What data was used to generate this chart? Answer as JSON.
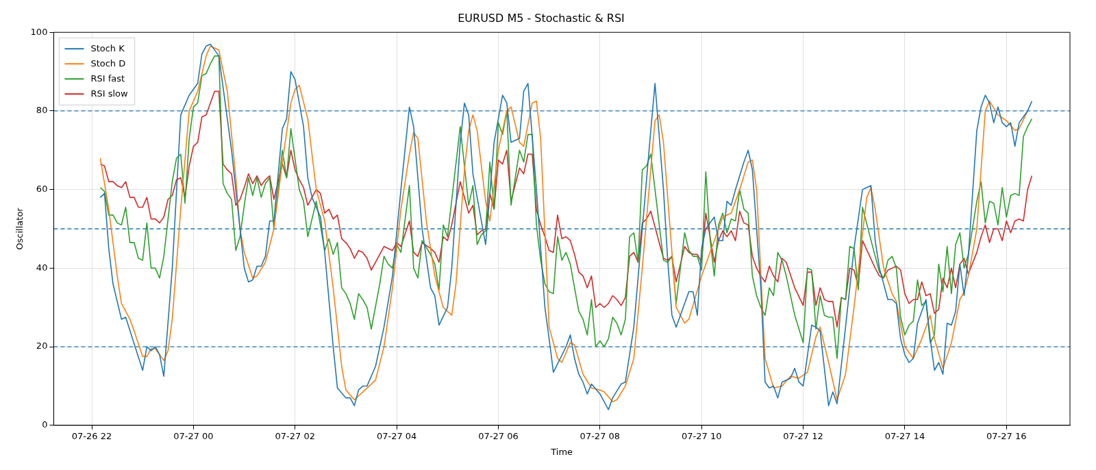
{
  "chart_data": {
    "type": "line",
    "title": "EURUSD M5 - Stochastic & RSI",
    "xlabel": "Time",
    "ylabel": "Oscillator",
    "xlim": [
      "--07-26T21:15",
      "--07-27T17:15"
    ],
    "xticks": [
      {
        "value": "--07-26T22:00",
        "label": "07-26 22"
      },
      {
        "value": "--07-27T00:00",
        "label": "07-27 00"
      },
      {
        "value": "--07-27T02:00",
        "label": "07-27 02"
      },
      {
        "value": "--07-27T04:00",
        "label": "07-27 04"
      },
      {
        "value": "--07-27T06:00",
        "label": "07-27 06"
      },
      {
        "value": "--07-27T08:00",
        "label": "07-27 08"
      },
      {
        "value": "--07-27T10:00",
        "label": "07-27 10"
      },
      {
        "value": "--07-27T12:00",
        "label": "07-27 12"
      },
      {
        "value": "--07-27T14:00",
        "label": "07-27 14"
      },
      {
        "value": "--07-27T16:00",
        "label": "07-27 16"
      }
    ],
    "ylim": [
      0,
      100
    ],
    "yticks": [
      0,
      20,
      40,
      60,
      80,
      100
    ],
    "grid": true,
    "legend": "top left",
    "ref_lines": [
      {
        "axis": "y",
        "value": 80,
        "color": "#1f77b4",
        "line_style": "dashed"
      },
      {
        "axis": "y",
        "value": 50,
        "color": "#1f78b4",
        "line_style": "dashed"
      },
      {
        "axis": "y",
        "value": 20,
        "color": "#1f76b4",
        "line_style": "dashed"
      }
    ],
    "series": [
      {
        "name": "Stoch K",
        "color": "#1f77b4",
        "x": [
          "--07-26T22:10",
          "--07-26T22:15",
          "--07-26T22:20",
          "--07-26T22:25",
          "--07-26T22:35",
          "--07-26T22:40",
          "--07-26T23:00",
          "--07-26T23:05",
          "--07-26T23:10",
          "--07-26T23:15",
          "--07-26T23:20",
          "--07-26T23:25",
          "--07-26T23:35",
          "--07-26T23:45",
          "--07-26T23:55",
          "--07-27T00:05",
          "--07-27T00:10",
          "--07-27T00:15",
          "--07-27T00:20",
          "--07-27T00:30",
          "--07-27T00:45",
          "--07-27T01:00",
          "--07-27T01:05",
          "--07-27T01:10",
          "--07-27T01:15",
          "--07-27T01:20",
          "--07-27T01:25",
          "--07-27T01:30",
          "--07-27T01:35",
          "--07-27T01:45",
          "--07-27T01:50",
          "--07-27T01:55",
          "--07-27T02:00",
          "--07-27T02:10",
          "--07-27T02:15",
          "--07-27T02:20",
          "--07-27T02:30",
          "--07-27T02:35",
          "--07-27T02:45",
          "--07-27T02:50",
          "--07-27T03:00",
          "--07-27T03:05",
          "--07-27T03:10",
          "--07-27T03:15",
          "--07-27T03:20",
          "--07-27T03:25",
          "--07-27T03:35",
          "--07-27T03:45",
          "--07-27T03:55",
          "--07-27T04:05",
          "--07-27T04:15",
          "--07-27T04:20",
          "--07-27T04:30",
          "--07-27T04:40",
          "--07-27T04:45",
          "--07-27T04:50",
          "--07-27T05:00",
          "--07-27T05:05",
          "--07-27T05:15",
          "--07-27T05:20",
          "--07-27T05:25",
          "--07-27T05:30",
          "--07-27T05:40",
          "--07-27T05:45",
          "--07-27T05:55",
          "--07-27T06:05",
          "--07-27T06:10",
          "--07-27T06:15",
          "--07-27T06:25",
          "--07-27T06:30",
          "--07-27T06:35",
          "--07-27T06:45",
          "--07-27T06:55",
          "--07-27T07:00",
          "--07-27T07:05",
          "--07-27T07:20",
          "--07-27T07:25",
          "--07-27T07:30",
          "--07-27T07:35",
          "--07-27T07:40",
          "--07-27T07:45",
          "--07-27T07:50",
          "--07-27T08:00",
          "--07-27T08:05",
          "--07-27T08:10",
          "--07-27T08:15",
          "--07-27T08:25",
          "--07-27T08:30",
          "--07-27T08:40",
          "--07-27T08:50",
          "--07-27T09:00",
          "--07-27T09:05",
          "--07-27T09:15",
          "--07-27T09:20",
          "--07-27T09:25",
          "--07-27T09:30",
          "--07-27T09:45",
          "--07-27T09:50",
          "--07-27T09:55",
          "--07-27T10:00",
          "--07-27T10:05",
          "--07-27T10:15",
          "--07-27T10:20",
          "--07-27T10:25",
          "--07-27T10:30",
          "--07-27T10:35",
          "--07-27T10:40",
          "--07-27T10:50",
          "--07-27T10:55",
          "--07-27T11:00",
          "--07-27T11:10",
          "--07-27T11:15",
          "--07-27T11:20",
          "--07-27T11:25",
          "--07-27T11:30",
          "--07-27T11:35",
          "--07-27T11:45",
          "--07-27T11:50",
          "--07-27T11:55",
          "--07-27T12:00",
          "--07-27T12:10",
          "--07-27T12:15",
          "--07-27T12:20",
          "--07-27T12:30",
          "--07-27T12:35",
          "--07-27T12:40",
          "--07-27T12:50",
          "--07-27T13:00",
          "--07-27T13:10",
          "--07-27T13:15",
          "--07-27T13:20",
          "--07-27T13:25",
          "--07-27T13:30",
          "--07-27T13:40",
          "--07-27T13:45",
          "--07-27T13:50",
          "--07-27T13:55",
          "--07-27T14:00",
          "--07-27T14:05",
          "--07-27T14:10",
          "--07-27T14:15",
          "--07-27T14:25",
          "--07-27T14:30",
          "--07-27T14:35",
          "--07-27T14:40",
          "--07-27T14:45",
          "--07-27T14:50",
          "--07-27T14:55",
          "--07-27T15:00",
          "--07-27T15:05",
          "--07-27T15:10",
          "--07-27T15:15",
          "--07-27T15:25",
          "--07-27T15:30",
          "--07-27T15:35",
          "--07-27T15:40",
          "--07-27T15:45",
          "--07-27T15:50",
          "--07-27T15:55",
          "--07-27T16:00",
          "--07-27T16:05",
          "--07-27T16:10",
          "--07-27T16:15",
          "--07-27T16:25",
          "--07-27T16:30"
        ],
        "values": [
          58,
          59,
          45,
          36,
          27,
          27.5,
          14,
          20,
          19,
          20,
          18,
          12.5,
          40,
          79,
          84,
          87,
          94.5,
          96.5,
          97,
          94,
          70,
          40,
          36.5,
          37,
          40.5,
          40.5,
          43,
          52,
          52,
          75.5,
          78,
          90,
          88,
          76,
          63,
          58,
          53,
          44,
          20,
          9.5,
          7,
          7,
          5,
          9,
          10,
          10,
          15,
          25,
          38,
          60,
          81,
          76,
          50,
          35,
          33,
          25.5,
          30,
          40,
          72,
          82,
          79,
          64,
          52,
          46,
          72,
          84,
          82,
          72,
          73,
          85,
          87,
          60,
          30,
          22,
          13.5,
          20,
          23,
          17,
          13,
          11,
          8,
          10.5,
          8,
          6,
          4,
          7,
          10.5,
          11,
          25,
          50,
          75,
          87,
          60,
          42,
          28,
          25,
          34,
          34,
          28,
          45,
          50,
          53,
          47,
          47,
          57,
          56,
          60,
          67,
          70,
          65,
          35,
          11,
          9.5,
          10,
          7,
          11,
          12,
          14.5,
          11,
          10,
          25.5,
          25,
          24,
          5,
          8.5,
          5.5,
          25,
          45,
          60,
          60.5,
          61,
          47,
          40,
          32,
          32,
          31,
          22,
          18,
          16,
          17,
          26,
          32,
          22,
          14,
          16,
          13,
          26,
          25.5,
          29,
          41,
          33,
          43,
          75,
          81,
          84,
          82,
          77,
          81,
          77,
          76,
          77,
          71,
          77,
          80,
          82.5
        ]
      },
      {
        "name": "Stoch D",
        "color": "#ff7f0e",
        "x": [
          "--07-26T22:10",
          "--07-26T22:20",
          "--07-26T22:30",
          "--07-26T22:35",
          "--07-26T22:45",
          "--07-26T22:50",
          "--07-26T23:00",
          "--07-26T23:05",
          "--07-26T23:10",
          "--07-26T23:15",
          "--07-26T23:25",
          "--07-26T23:30",
          "--07-26T23:35",
          "--07-26T23:45",
          "--07-26T23:55",
          "--07-27T00:05",
          "--07-27T00:15",
          "--07-27T00:20",
          "--07-27T00:30",
          "--07-27T00:40",
          "--07-27T00:50",
          "--07-27T00:55",
          "--07-27T01:00",
          "--07-27T01:10",
          "--07-27T01:15",
          "--07-27T01:25",
          "--07-27T01:35",
          "--07-27T01:45",
          "--07-27T01:55",
          "--07-27T02:00",
          "--07-27T02:05",
          "--07-27T02:15",
          "--07-27T02:25",
          "--07-27T02:35",
          "--07-27T02:45",
          "--07-27T02:55",
          "--07-27T03:00",
          "--07-27T03:10",
          "--07-27T03:20",
          "--07-27T03:30",
          "--07-27T03:35",
          "--07-27T03:45",
          "--07-27T03:55",
          "--07-27T04:05",
          "--07-27T04:15",
          "--07-27T04:20",
          "--07-27T04:25",
          "--07-27T04:35",
          "--07-27T04:45",
          "--07-27T04:55",
          "--07-27T05:05",
          "--07-27T05:10",
          "--07-27T05:20",
          "--07-27T05:25",
          "--07-27T05:30",
          "--07-27T05:35",
          "--07-27T05:45",
          "--07-27T05:50",
          "--07-27T06:00",
          "--07-27T06:10",
          "--07-27T06:15",
          "--07-27T06:25",
          "--07-27T06:30",
          "--07-27T06:40",
          "--07-27T06:45",
          "--07-27T06:50",
          "--07-27T07:00",
          "--07-27T07:10",
          "--07-27T07:15",
          "--07-27T07:25",
          "--07-27T07:30",
          "--07-27T07:40",
          "--07-27T07:50",
          "--07-27T08:00",
          "--07-27T08:05",
          "--07-27T08:15",
          "--07-27T08:20",
          "--07-27T08:30",
          "--07-27T08:40",
          "--07-27T08:50",
          "--07-27T09:05",
          "--07-27T09:10",
          "--07-27T09:15",
          "--07-27T09:30",
          "--07-27T09:40",
          "--07-27T09:45",
          "--07-27T10:00",
          "--07-27T10:15",
          "--07-27T10:25",
          "--07-27T10:35",
          "--07-27T10:45",
          "--07-27T10:55",
          "--07-27T11:00",
          "--07-27T11:05",
          "--07-27T11:15",
          "--07-27T11:25",
          "--07-27T11:35",
          "--07-27T11:45",
          "--07-27T11:55",
          "--07-27T12:05",
          "--07-27T12:15",
          "--07-27T12:20",
          "--07-27T12:30",
          "--07-27T12:40",
          "--07-27T12:50",
          "--07-27T13:00",
          "--07-27T13:15",
          "--07-27T13:20",
          "--07-27T13:25",
          "--07-27T13:35",
          "--07-27T13:45",
          "--07-27T13:50",
          "--07-27T14:00",
          "--07-27T14:10",
          "--07-27T14:20",
          "--07-27T14:30",
          "--07-27T14:35",
          "--07-27T14:45",
          "--07-27T14:55",
          "--07-27T15:05",
          "--07-27T15:10",
          "--07-27T15:15",
          "--07-27T15:25",
          "--07-27T15:35",
          "--07-27T15:40",
          "--07-27T15:50",
          "--07-27T16:00",
          "--07-27T16:10",
          "--07-27T16:15",
          "--07-27T16:25"
        ],
        "values": [
          68,
          55,
          38,
          31,
          27,
          24,
          17.5,
          17.5,
          19.5,
          19.5,
          16.5,
          19,
          27,
          55,
          80,
          85,
          94,
          96.5,
          95.5,
          85,
          63,
          50,
          44,
          37.5,
          38,
          41.5,
          50,
          67,
          82,
          85.5,
          86.5,
          78,
          60,
          52,
          35,
          15,
          9,
          6.5,
          8.5,
          10.5,
          11.5,
          20,
          35,
          55,
          69,
          74.5,
          73,
          52,
          38,
          30,
          28,
          36,
          65,
          75,
          79,
          75,
          57,
          52,
          70,
          80,
          81,
          72,
          71,
          82,
          82.5,
          73,
          25,
          17,
          16,
          21,
          20.5,
          13,
          9.5,
          9,
          8.5,
          6,
          6.5,
          10,
          17,
          40,
          77.5,
          79,
          72,
          30,
          26,
          27,
          38,
          47,
          53,
          54,
          60,
          67,
          67.5,
          60,
          17,
          9.5,
          10,
          12.5,
          12,
          13.5,
          22.5,
          25,
          16,
          6.5,
          13,
          30,
          58,
          60.5,
          55,
          40,
          33.5,
          31.5,
          20,
          17,
          22,
          28,
          22,
          14.5,
          21,
          32,
          34,
          38,
          50,
          80,
          82.5,
          79,
          77.5,
          75,
          75.5,
          80
        ]
      },
      {
        "name": "RSI fast",
        "color": "#2ca02c",
        "x": [
          "--07-26T22:10",
          "--07-26T22:15",
          "--07-26T22:20",
          "--07-26T22:25",
          "--07-26T22:30",
          "--07-26T22:35",
          "--07-26T22:40",
          "--07-26T22:45",
          "--07-26T22:50",
          "--07-26T22:55",
          "--07-26T23:00",
          "--07-26T23:05",
          "--07-26T23:10",
          "--07-26T23:15",
          "--07-26T23:20",
          "--07-26T23:25",
          "--07-26T23:35",
          "--07-26T23:40",
          "--07-26T23:45",
          "--07-26T23:50",
          "--07-26T23:55",
          "--07-27T00:00",
          "--07-27T00:05",
          "--07-27T00:10",
          "--07-27T00:15",
          "--07-27T00:20",
          "--07-27T00:25",
          "--07-27T00:30",
          "--07-27T00:35",
          "--07-27T00:40",
          "--07-27T00:45",
          "--07-27T00:50",
          "--07-27T00:55",
          "--07-27T01:00",
          "--07-27T01:05",
          "--07-27T01:10",
          "--07-27T01:15",
          "--07-27T01:20",
          "--07-27T01:25",
          "--07-27T01:30",
          "--07-27T01:35",
          "--07-27T01:45",
          "--07-27T01:50",
          "--07-27T01:55",
          "--07-27T02:05",
          "--07-27T02:10",
          "--07-27T02:15",
          "--07-27T02:25",
          "--07-27T02:35",
          "--07-27T02:40",
          "--07-27T02:45",
          "--07-27T02:50",
          "--07-27T02:55",
          "--07-27T03:00",
          "--07-27T03:05",
          "--07-27T03:10",
          "--07-27T03:15",
          "--07-27T03:20",
          "--07-27T03:25",
          "--07-27T03:30",
          "--07-27T03:40",
          "--07-27T03:45",
          "--07-27T03:50",
          "--07-27T03:55",
          "--07-27T04:00",
          "--07-27T04:05",
          "--07-27T04:15",
          "--07-27T04:20",
          "--07-27T04:25",
          "--07-27T04:30",
          "--07-27T04:40",
          "--07-27T04:45",
          "--07-27T04:50",
          "--07-27T04:55",
          "--07-27T05:00",
          "--07-27T05:15",
          "--07-27T05:25",
          "--07-27T05:30",
          "--07-27T05:35",
          "--07-27T05:40",
          "--07-27T05:45",
          "--07-27T05:50",
          "--07-27T05:55",
          "--07-27T06:00",
          "--07-27T06:05",
          "--07-27T06:10",
          "--07-27T06:15",
          "--07-27T06:25",
          "--07-27T06:30",
          "--07-27T06:35",
          "--07-27T06:40",
          "--07-27T06:45",
          "--07-27T06:50",
          "--07-27T06:55",
          "--07-27T07:00",
          "--07-27T07:05",
          "--07-27T07:10",
          "--07-27T07:15",
          "--07-27T07:20",
          "--07-27T07:25",
          "--07-27T07:35",
          "--07-27T07:40",
          "--07-27T07:45",
          "--07-27T07:50",
          "--07-27T07:55",
          "--07-27T08:00",
          "--07-27T08:05",
          "--07-27T08:10",
          "--07-27T08:15",
          "--07-27T08:20",
          "--07-27T08:25",
          "--07-27T08:30",
          "--07-27T08:35",
          "--07-27T08:40",
          "--07-27T08:45",
          "--07-27T08:50",
          "--07-27T08:55",
          "--07-27T09:00",
          "--07-27T09:15",
          "--07-27T09:20",
          "--07-27T09:25",
          "--07-27T09:30",
          "--07-27T09:40",
          "--07-27T09:45",
          "--07-27T09:50",
          "--07-27T09:55",
          "--07-27T10:00",
          "--07-27T10:05",
          "--07-27T10:10",
          "--07-27T10:15",
          "--07-27T10:20",
          "--07-27T10:25",
          "--07-27T10:30",
          "--07-27T10:35",
          "--07-27T10:40",
          "--07-27T10:45",
          "--07-27T10:50",
          "--07-27T10:55",
          "--07-27T11:00",
          "--07-27T11:05",
          "--07-27T11:10",
          "--07-27T11:15",
          "--07-27T11:20",
          "--07-27T11:25",
          "--07-27T11:30",
          "--07-27T11:35",
          "--07-27T11:40",
          "--07-27T11:50",
          "--07-27T12:00",
          "--07-27T12:05",
          "--07-27T12:10",
          "--07-27T12:15",
          "--07-27T12:20",
          "--07-27T12:25",
          "--07-27T12:30",
          "--07-27T12:35",
          "--07-27T12:40",
          "--07-27T12:45",
          "--07-27T12:50",
          "--07-27T12:55",
          "--07-27T13:00",
          "--07-27T13:05",
          "--07-27T13:10",
          "--07-27T13:25",
          "--07-27T13:30",
          "--07-27T13:35",
          "--07-27T13:40",
          "--07-27T13:45",
          "--07-27T13:50",
          "--07-27T13:55",
          "--07-27T14:00",
          "--07-27T14:05",
          "--07-27T14:10",
          "--07-27T14:15",
          "--07-27T14:20",
          "--07-27T14:25",
          "--07-27T14:30",
          "--07-27T14:35",
          "--07-27T14:40",
          "--07-27T14:45",
          "--07-27T14:50",
          "--07-27T14:55",
          "--07-27T15:00",
          "--07-27T15:05",
          "--07-27T15:10",
          "--07-27T15:15",
          "--07-27T15:25",
          "--07-27T15:30",
          "--07-27T15:35",
          "--07-27T15:40",
          "--07-27T15:45",
          "--07-27T15:50",
          "--07-27T15:55",
          "--07-27T16:00",
          "--07-27T16:05",
          "--07-27T16:10",
          "--07-27T16:15",
          "--07-27T16:20",
          "--07-27T16:25",
          "--07-27T16:30"
        ],
        "values": [
          60.5,
          59.5,
          53.5,
          53.5,
          51.5,
          51,
          55.5,
          46.5,
          46.5,
          42.5,
          42,
          51.5,
          40,
          40,
          37.5,
          43,
          62,
          68,
          69,
          56.5,
          73,
          81,
          82,
          89,
          89.5,
          92,
          94,
          94,
          61.5,
          59,
          57.5,
          44.5,
          48,
          56,
          63,
          58.5,
          63,
          58,
          61.5,
          63,
          50,
          70,
          63,
          75.5,
          60,
          57,
          48,
          57,
          44.5,
          47.5,
          43.5,
          46.5,
          35,
          33.5,
          31,
          27,
          33.5,
          32,
          30,
          24.5,
          36,
          43,
          41,
          40,
          46,
          44,
          61,
          40,
          37.5,
          47,
          43.5,
          41,
          34.5,
          51,
          48,
          76,
          56,
          61,
          46,
          48.5,
          49.5,
          67,
          55,
          77,
          74,
          80,
          56,
          70,
          67,
          74,
          74,
          51,
          42,
          36,
          34,
          33.5,
          48,
          42,
          44,
          41,
          29,
          27,
          23,
          32,
          20,
          21.5,
          20,
          22,
          27.5,
          26,
          23,
          27,
          48,
          49,
          41.5,
          65,
          66,
          69,
          42,
          41.5,
          43,
          31,
          49,
          44.5,
          43,
          43,
          39.5,
          64.5,
          47.5,
          38,
          51,
          54,
          49,
          52.5,
          52,
          60,
          55,
          54,
          38,
          33,
          30,
          28,
          35,
          33,
          44,
          42,
          38,
          28,
          21,
          40,
          39.5,
          24.5,
          33,
          28,
          27.5,
          27.5,
          17,
          32.5,
          32,
          45.5,
          45,
          34.5,
          55.5,
          43,
          39,
          37.5,
          42,
          43,
          40,
          27.5,
          23,
          25.5,
          26.5,
          37,
          30.5,
          31.5,
          21,
          23,
          41,
          34,
          45.5,
          33.5,
          46,
          49,
          40,
          43.5,
          57,
          62,
          51.5,
          57,
          56.5,
          51,
          60.5,
          53,
          58.5,
          59,
          58.5,
          73.5,
          76,
          78
        ]
      },
      {
        "name": "RSI slow",
        "color": "#d62728",
        "x": [
          "--07-26T22:10",
          "--07-26T22:15",
          "--07-26T22:20",
          "--07-26T22:25",
          "--07-26T22:30",
          "--07-26T22:35",
          "--07-26T22:40",
          "--07-26T22:45",
          "--07-26T22:50",
          "--07-26T22:55",
          "--07-26T23:00",
          "--07-26T23:05",
          "--07-26T23:10",
          "--07-26T23:15",
          "--07-26T23:20",
          "--07-26T23:25",
          "--07-26T23:30",
          "--07-26T23:35",
          "--07-26T23:40",
          "--07-26T23:45",
          "--07-26T23:50",
          "--07-26T23:55",
          "--07-27T00:00",
          "--07-27T00:05",
          "--07-27T00:10",
          "--07-27T00:15",
          "--07-27T00:20",
          "--07-27T00:25",
          "--07-27T00:30",
          "--07-27T00:35",
          "--07-27T00:40",
          "--07-27T00:45",
          "--07-27T00:50",
          "--07-27T00:55",
          "--07-27T01:00",
          "--07-27T01:05",
          "--07-27T01:10",
          "--07-27T01:15",
          "--07-27T01:20",
          "--07-27T01:25",
          "--07-27T01:30",
          "--07-27T01:35",
          "--07-27T01:45",
          "--07-27T01:50",
          "--07-27T01:55",
          "--07-27T02:00",
          "--07-27T02:05",
          "--07-27T02:10",
          "--07-27T02:15",
          "--07-27T02:20",
          "--07-27T02:25",
          "--07-27T02:30",
          "--07-27T02:35",
          "--07-27T02:40",
          "--07-27T02:45",
          "--07-27T02:50",
          "--07-27T02:55",
          "--07-27T03:00",
          "--07-27T03:05",
          "--07-27T03:10",
          "--07-27T03:15",
          "--07-27T03:20",
          "--07-27T03:25",
          "--07-27T03:30",
          "--07-27T03:40",
          "--07-27T03:45",
          "--07-27T03:50",
          "--07-27T03:55",
          "--07-27T04:00",
          "--07-27T04:05",
          "--07-27T04:15",
          "--07-27T04:20",
          "--07-27T04:25",
          "--07-27T04:30",
          "--07-27T04:40",
          "--07-27T04:45",
          "--07-27T04:50",
          "--07-27T04:55",
          "--07-27T05:00",
          "--07-27T05:05",
          "--07-27T05:15",
          "--07-27T05:25",
          "--07-27T05:30",
          "--07-27T05:35",
          "--07-27T05:40",
          "--07-27T05:45",
          "--07-27T05:50",
          "--07-27T05:55",
          "--07-27T06:00",
          "--07-27T06:05",
          "--07-27T06:10",
          "--07-27T06:15",
          "--07-27T06:25",
          "--07-27T06:30",
          "--07-27T06:35",
          "--07-27T06:40",
          "--07-27T06:45",
          "--07-27T06:50",
          "--07-27T06:55",
          "--07-27T07:00",
          "--07-27T07:05",
          "--07-27T07:10",
          "--07-27T07:15",
          "--07-27T07:20",
          "--07-27T07:25",
          "--07-27T07:30",
          "--07-27T07:35",
          "--07-27T07:40",
          "--07-27T07:45",
          "--07-27T07:50",
          "--07-27T07:55",
          "--07-27T08:00",
          "--07-27T08:05",
          "--07-27T08:10",
          "--07-27T08:15",
          "--07-27T08:20",
          "--07-27T08:25",
          "--07-27T08:30",
          "--07-27T08:35",
          "--07-27T08:40",
          "--07-27T08:45",
          "--07-27T08:50",
          "--07-27T08:55",
          "--07-27T09:00",
          "--07-27T09:15",
          "--07-27T09:20",
          "--07-27T09:25",
          "--07-27T09:30",
          "--07-27T09:40",
          "--07-27T09:45",
          "--07-27T09:50",
          "--07-27T09:55",
          "--07-27T10:00",
          "--07-27T10:05",
          "--07-27T10:10",
          "--07-27T10:15",
          "--07-27T10:20",
          "--07-27T10:25",
          "--07-27T10:30",
          "--07-27T10:35",
          "--07-27T10:40",
          "--07-27T10:45",
          "--07-27T10:50",
          "--07-27T10:55",
          "--07-27T11:00",
          "--07-27T11:05",
          "--07-27T11:10",
          "--07-27T11:15",
          "--07-27T11:20",
          "--07-27T11:25",
          "--07-27T11:30",
          "--07-27T11:35",
          "--07-27T11:40",
          "--07-27T11:50",
          "--07-27T12:00",
          "--07-27T12:05",
          "--07-27T12:10",
          "--07-27T12:15",
          "--07-27T12:20",
          "--07-27T12:25",
          "--07-27T12:30",
          "--07-27T12:35",
          "--07-27T12:40",
          "--07-27T12:45",
          "--07-27T12:50",
          "--07-27T12:55",
          "--07-27T13:00",
          "--07-27T13:05",
          "--07-27T13:10",
          "--07-27T13:25",
          "--07-27T13:30",
          "--07-27T13:35",
          "--07-27T13:40",
          "--07-27T13:45",
          "--07-27T13:50",
          "--07-27T13:55",
          "--07-27T14:00",
          "--07-27T14:05",
          "--07-27T14:10",
          "--07-27T14:15",
          "--07-27T14:20",
          "--07-27T14:25",
          "--07-27T14:30",
          "--07-27T14:35",
          "--07-27T14:40",
          "--07-27T14:45",
          "--07-27T14:50",
          "--07-27T14:55",
          "--07-27T15:00",
          "--07-27T15:05",
          "--07-27T15:10",
          "--07-27T15:15",
          "--07-27T15:25",
          "--07-27T15:30",
          "--07-27T15:35",
          "--07-27T15:40",
          "--07-27T15:45",
          "--07-27T15:50",
          "--07-27T15:55",
          "--07-27T16:00",
          "--07-27T16:05",
          "--07-27T16:10",
          "--07-27T16:15",
          "--07-27T16:20",
          "--07-27T16:25",
          "--07-27T16:30"
        ],
        "values": [
          66.5,
          66,
          62,
          62,
          61,
          60.5,
          62,
          58,
          58,
          55.5,
          55.5,
          58,
          52.5,
          52.5,
          51.5,
          53,
          57.5,
          58.5,
          62.5,
          63,
          58,
          66,
          71,
          72,
          78.5,
          79,
          82,
          85,
          85,
          66.5,
          65,
          64,
          56,
          57.5,
          60.5,
          64,
          61.5,
          63.5,
          61,
          62.5,
          63.5,
          57.5,
          66.5,
          63,
          70,
          65,
          62.5,
          60.5,
          56,
          58,
          60,
          59,
          54,
          55,
          52.5,
          53.5,
          47.5,
          46.5,
          45,
          42.5,
          44.5,
          44,
          42.5,
          39.5,
          43.5,
          45.5,
          45,
          44.5,
          46.5,
          45.5,
          52,
          44,
          43,
          46.5,
          45,
          44,
          41.5,
          48,
          47,
          51,
          62,
          54,
          56,
          48.5,
          49.5,
          50,
          59,
          55,
          67.5,
          66.5,
          70,
          57,
          65.5,
          64,
          69,
          69,
          55,
          51,
          48,
          44.5,
          44,
          53.5,
          47.5,
          48,
          47,
          43.5,
          39,
          38,
          35,
          38,
          30,
          31,
          30,
          31,
          33,
          32,
          30.5,
          32.5,
          43,
          44,
          41.5,
          51.5,
          52.5,
          54.5,
          42.5,
          42,
          43,
          36.5,
          45.5,
          44,
          43.5,
          43.5,
          41.5,
          54,
          48,
          41.5,
          47,
          49.5,
          48,
          49.5,
          47,
          54.5,
          51.5,
          51,
          43,
          40,
          38,
          36.5,
          40.5,
          38,
          36.5,
          42.5,
          41.5,
          35,
          30.5,
          39,
          39,
          30.5,
          35,
          32,
          31.5,
          31.5,
          25,
          32.5,
          32,
          40,
          39.5,
          35.5,
          47,
          40,
          38,
          37.5,
          39.5,
          40,
          40.5,
          39.5,
          33.5,
          31,
          32,
          32,
          36.5,
          33,
          33.5,
          28.5,
          29.5,
          37.5,
          35,
          40,
          35,
          41,
          42.5,
          38.5,
          44,
          48,
          51,
          46.5,
          50,
          50,
          47,
          52,
          49,
          52,
          52.5,
          52,
          60,
          63.5
        ]
      }
    ]
  }
}
